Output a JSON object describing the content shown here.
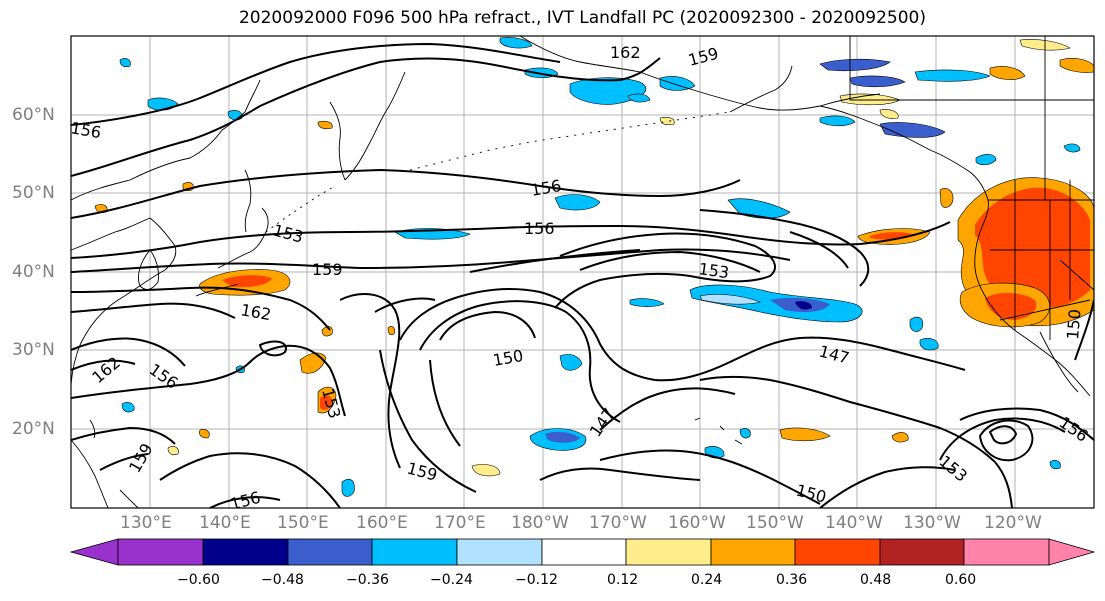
{
  "title": "2020092000 F096 500 hPa refract., IVT Landfall PC (2020092300 - 2020092500)",
  "lat_labels": [
    "60°N",
    "50°N",
    "40°N",
    "30°N",
    "20°N"
  ],
  "lon_labels": [
    "130°E",
    "140°E",
    "150°E",
    "160°E",
    "170°E",
    "180°W",
    "170°W",
    "160°W",
    "150°W",
    "140°W",
    "130°W",
    "120°W"
  ],
  "contour_labels": [
    "162",
    "159",
    "156",
    "156",
    "156",
    "153",
    "159",
    "153",
    "162",
    "156",
    "162",
    "150",
    "153",
    "147",
    "147",
    "150",
    "159",
    "156",
    "159",
    "153",
    "156",
    "150"
  ],
  "colorbar": {
    "ticks": [
      "−0.60",
      "−0.48",
      "−0.36",
      "−0.24",
      "−0.12",
      "0.12",
      "0.24",
      "0.36",
      "0.48",
      "0.60"
    ],
    "colors": [
      "#9932cc",
      "#00008b",
      "#3a5fcd",
      "#00bfff",
      "#b0e2ff",
      "#ffffff",
      "#ffec8b",
      "#ffa500",
      "#ff4500",
      "#b22222",
      "#ff82ab"
    ]
  }
}
